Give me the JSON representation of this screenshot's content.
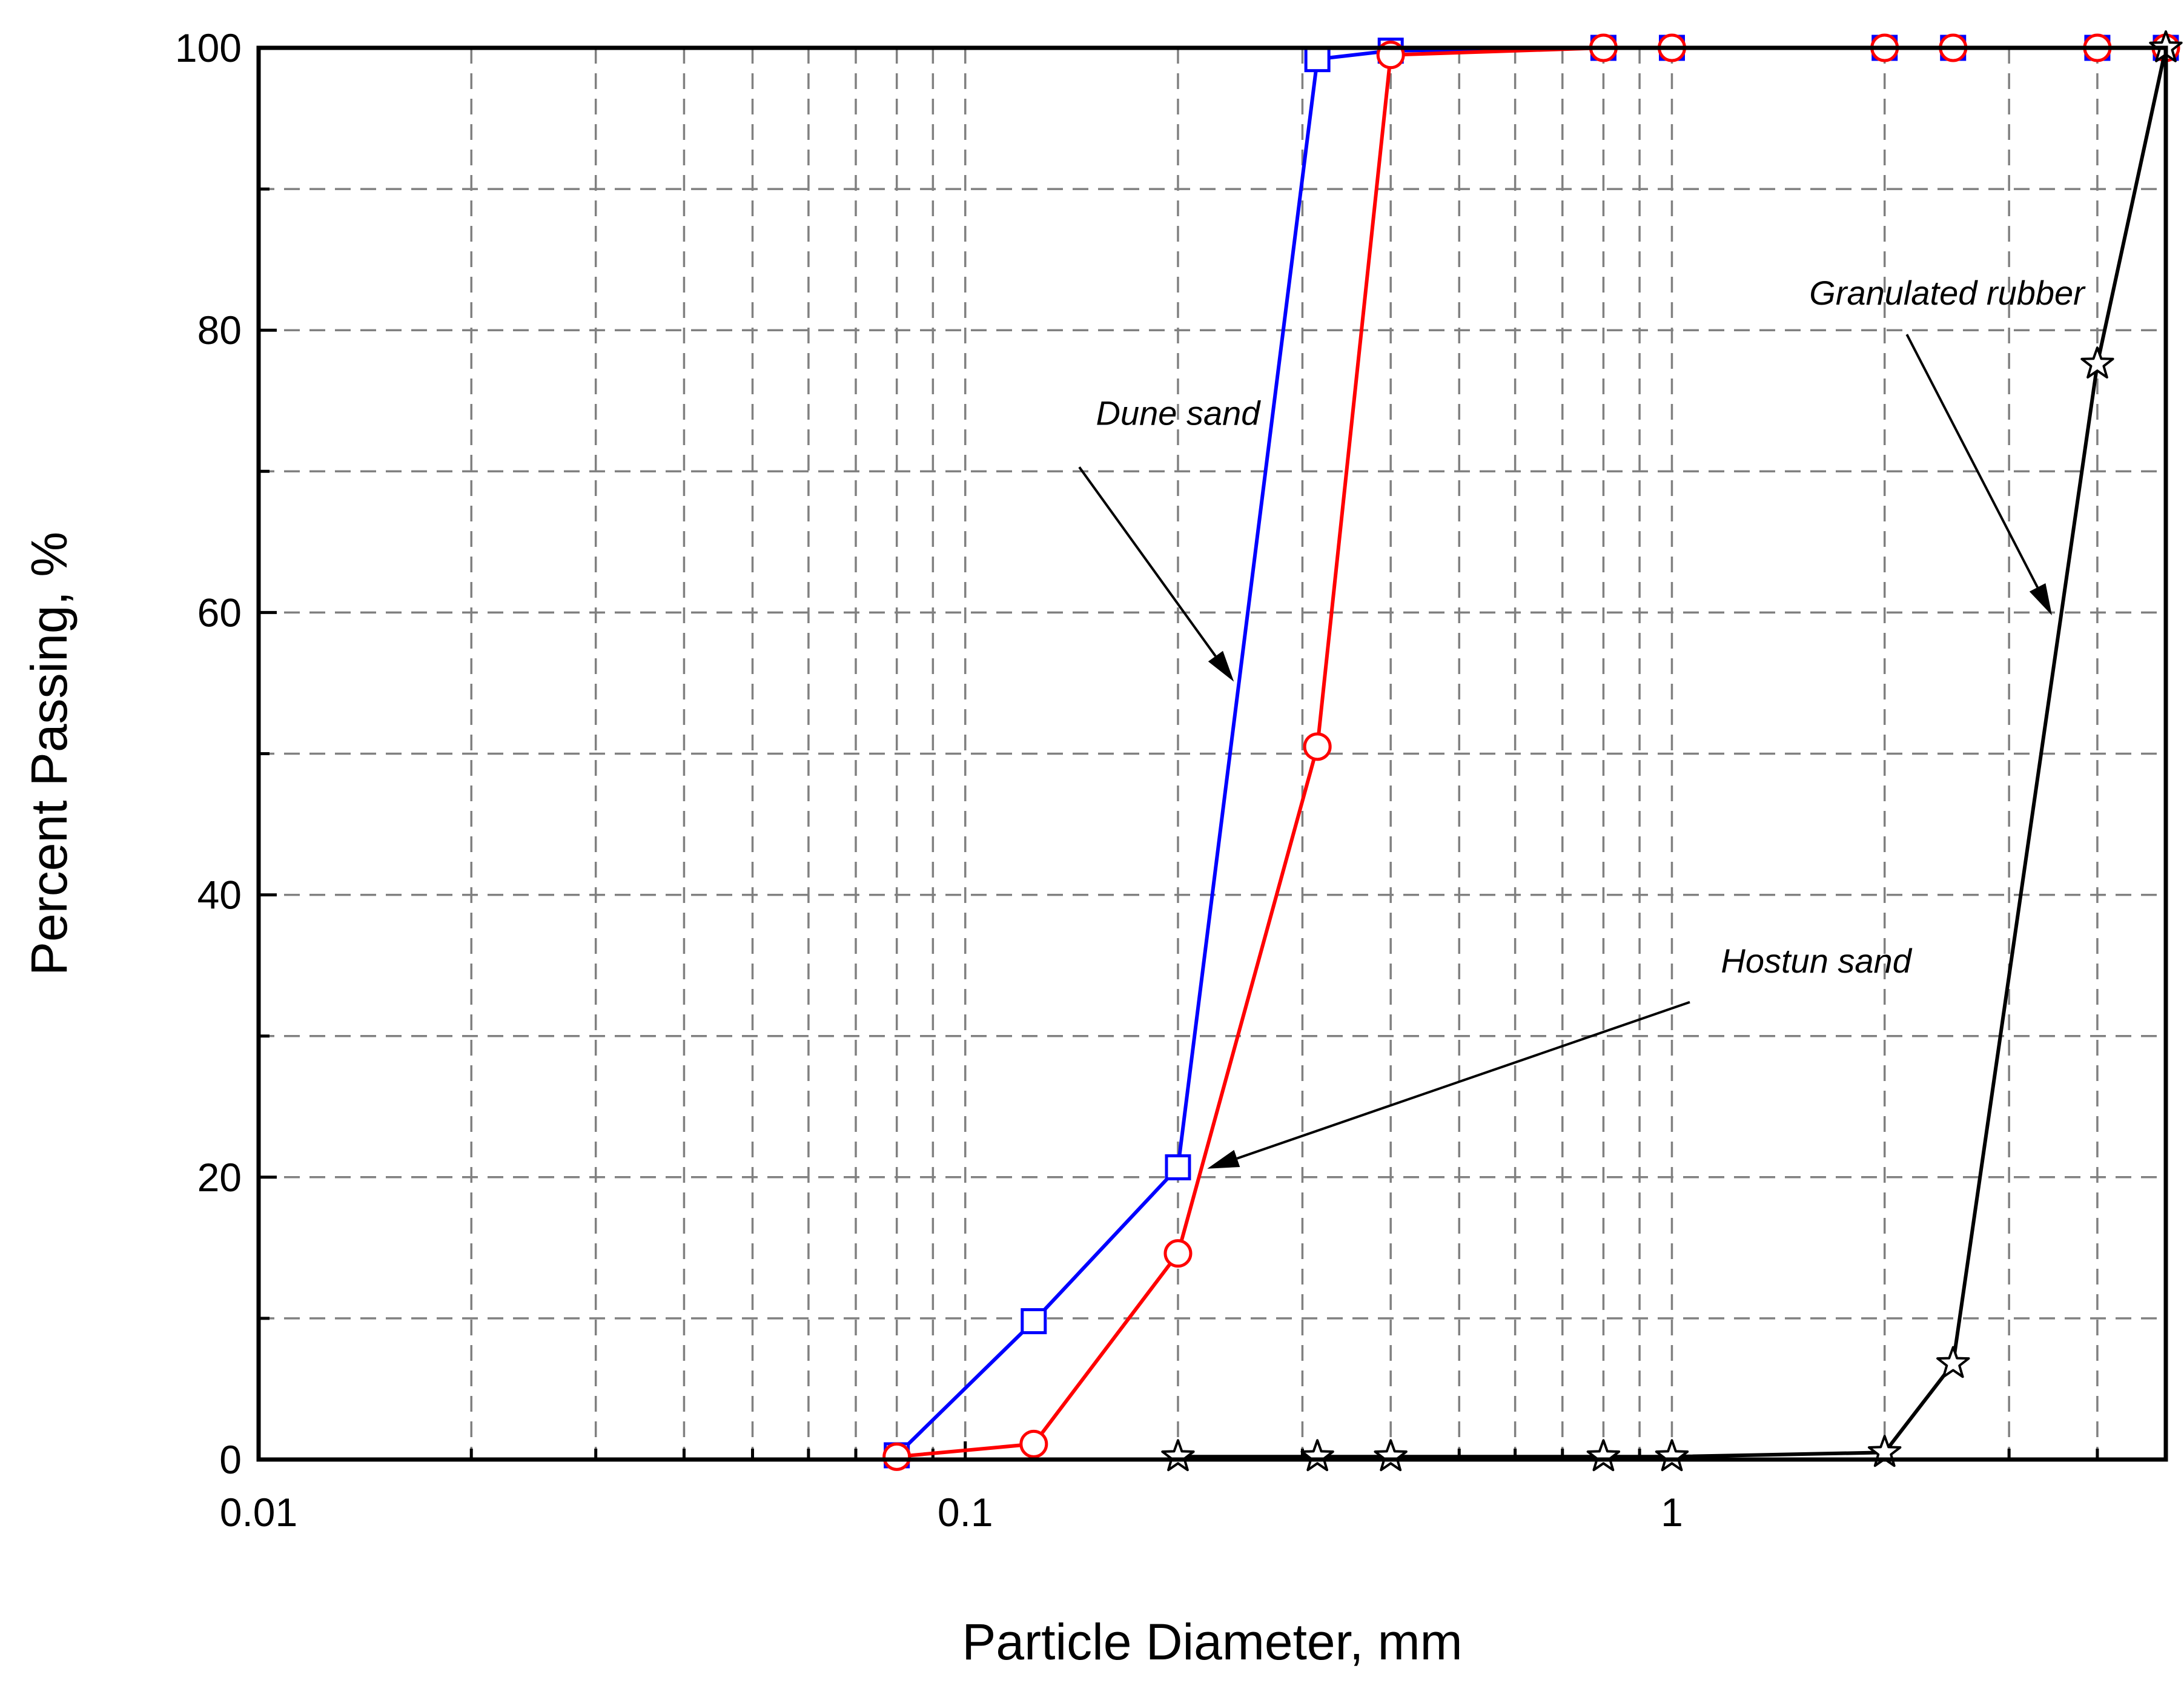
{
  "chart_data": {
    "type": "line",
    "xlabel": "Particle Diameter, mm",
    "ylabel": "Percent Passing, %",
    "xscale": "log",
    "xlim": [
      0.01,
      5
    ],
    "ylim": [
      0,
      100
    ],
    "grid": true,
    "x_ticks": [
      {
        "value": 0.01,
        "label": "0.01"
      },
      {
        "value": 0.1,
        "label": "0.1"
      },
      {
        "value": 1,
        "label": "1"
      }
    ],
    "y_ticks": [
      {
        "value": 0,
        "label": "0"
      },
      {
        "value": 20,
        "label": "20"
      },
      {
        "value": 40,
        "label": "40"
      },
      {
        "value": 60,
        "label": "60"
      },
      {
        "value": 80,
        "label": "80"
      },
      {
        "value": 100,
        "label": "100"
      }
    ],
    "series": [
      {
        "key": "dune",
        "color": "#0000ff",
        "marker": "square",
        "points": [
          [
            0.08,
            0.3
          ],
          [
            0.125,
            9.8
          ],
          [
            0.2,
            20.7
          ],
          [
            0.315,
            99.2
          ],
          [
            0.4,
            99.8
          ],
          [
            0.8,
            100
          ],
          [
            1,
            100
          ],
          [
            2,
            100
          ],
          [
            2.5,
            100
          ],
          [
            4,
            100
          ],
          [
            5,
            100
          ]
        ]
      },
      {
        "key": "hostun",
        "color": "#ff0000",
        "marker": "circle",
        "points": [
          [
            0.08,
            0.2
          ],
          [
            0.125,
            1.1
          ],
          [
            0.2,
            14.6
          ],
          [
            0.315,
            50.5
          ],
          [
            0.4,
            99.5
          ],
          [
            0.8,
            100
          ],
          [
            1,
            100
          ],
          [
            2,
            100
          ],
          [
            2.5,
            100
          ],
          [
            4,
            100
          ],
          [
            5,
            100
          ]
        ]
      },
      {
        "key": "rubber",
        "color": "#000000",
        "marker": "star",
        "points": [
          [
            0.2,
            0.2
          ],
          [
            0.315,
            0.2
          ],
          [
            0.4,
            0.2
          ],
          [
            0.8,
            0.2
          ],
          [
            1,
            0.2
          ],
          [
            2,
            0.5
          ],
          [
            2.5,
            6.8
          ],
          [
            4,
            77.6
          ],
          [
            5,
            100
          ]
        ]
      }
    ],
    "annotations": [
      {
        "text": "Dune sand",
        "target": "dune",
        "text_at": [
          0.2,
          73.3
        ],
        "arrow_from": [
          0.145,
          70.3
        ],
        "arrow_to": [
          0.24,
          55.1
        ]
      },
      {
        "text": "Hostun sand",
        "target": "hostun",
        "text_at": [
          1.6,
          34.5
        ],
        "arrow_from": [
          1.06,
          32.4
        ],
        "arrow_to": [
          0.22,
          20.6
        ]
      },
      {
        "text": "Granulated rubber",
        "target": "rubber",
        "text_at": [
          2.45,
          81.8
        ],
        "arrow_from": [
          2.15,
          79.7
        ],
        "arrow_to": [
          3.45,
          59.8
        ]
      }
    ]
  }
}
